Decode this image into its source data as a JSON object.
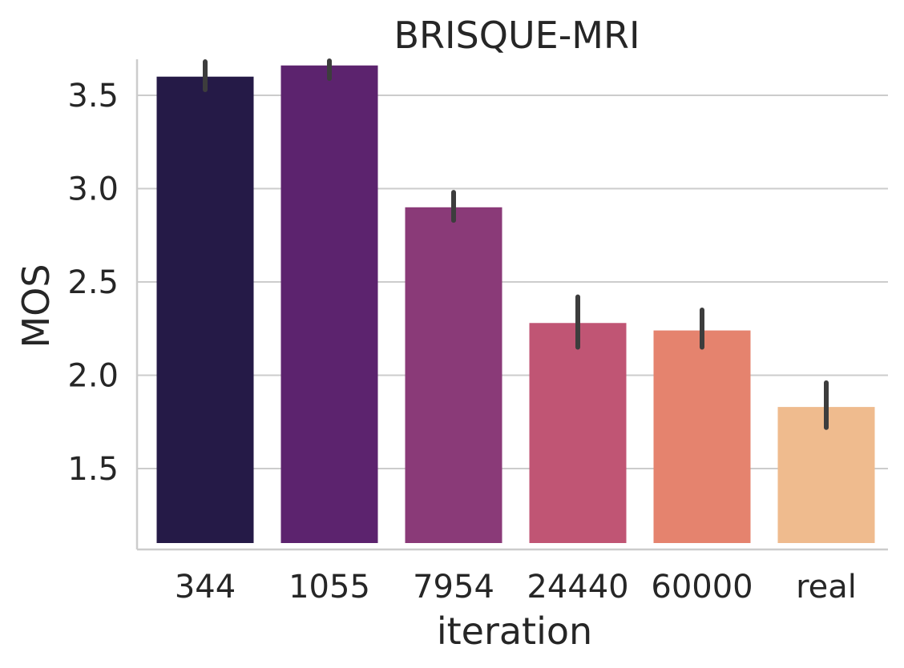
{
  "chart_data": {
    "type": "bar",
    "title": "BRISQUE-MRI",
    "xlabel": "iteration",
    "ylabel": "MOS",
    "categories": [
      "344",
      "1055",
      "7954",
      "24440",
      "60000",
      "real"
    ],
    "values": [
      3.6,
      3.66,
      2.9,
      2.28,
      2.24,
      1.83
    ],
    "error_low": [
      3.53,
      3.59,
      2.83,
      2.15,
      2.15,
      1.72
    ],
    "error_high": [
      3.68,
      3.73,
      2.98,
      2.42,
      2.35,
      1.96
    ],
    "colors": [
      "#251a47",
      "#5c236e",
      "#8a3a78",
      "#c05574",
      "#e5836e",
      "#efbb8e"
    ],
    "ylim": [
      1.1,
      3.7
    ],
    "yticks": [
      "1.5",
      "2.0",
      "2.5",
      "3.0",
      "3.5"
    ],
    "grid": "horizontal",
    "legend": "none"
  }
}
